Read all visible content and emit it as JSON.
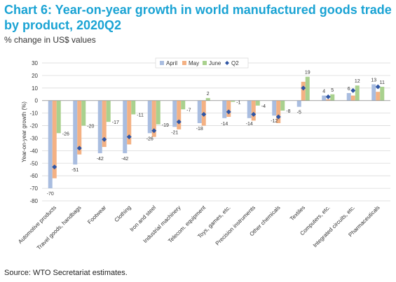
{
  "header": {
    "title": "Chart 6: Year-on-year growth in world manufactured goods trade by product, 2020Q2",
    "subtitle": "% change in US$ values"
  },
  "footer": {
    "source": "Source:   WTO Secretariat estimates."
  },
  "colors": {
    "title": "#1aa3d4",
    "april": "#a9bde0",
    "may": "#f4b183",
    "june": "#a9d18e",
    "q2": "#2f55a4"
  },
  "chart_data": {
    "type": "bar",
    "ylabel": "Year-on-year growth (%)",
    "ylim": [
      -80,
      30
    ],
    "yticks": [
      30,
      20,
      10,
      0,
      -10,
      -20,
      -30,
      -40,
      -50,
      -60,
      -70,
      -80
    ],
    "grid": true,
    "legend_position": "top-center",
    "categories": [
      "Automotive products",
      "Travel goods, handbags",
      "Footwear",
      "Clothing",
      "Iron and steel",
      "Industrial machinery",
      "Telecom. equipment",
      "Toys, games, etc.",
      "Precision instruments",
      "Other chemicals",
      "Textiles",
      "Computers, etc.",
      "Integrated circuits, etc.",
      "Pharmaceuticals"
    ],
    "series": [
      {
        "name": "April",
        "type": "bar",
        "values": [
          -70,
          -51,
          -42,
          -42,
          -26,
          -21,
          -18,
          -14,
          -14,
          -12,
          -5,
          4,
          6,
          13
        ]
      },
      {
        "name": "May",
        "type": "bar",
        "values": [
          -62,
          -43,
          -37,
          -35,
          -29,
          -23,
          -20,
          -13,
          -16,
          -18,
          15,
          1,
          4,
          7
        ]
      },
      {
        "name": "June",
        "type": "bar",
        "values": [
          -26,
          -20,
          -17,
          -11,
          -19,
          -7,
          2,
          -1,
          -4,
          -8,
          19,
          5,
          12,
          11
        ]
      },
      {
        "name": "Q2",
        "type": "marker",
        "values": [
          -53,
          -38,
          -31,
          -29,
          -24,
          -17,
          -11,
          -9,
          -11,
          -13,
          10,
          3,
          8,
          11
        ]
      }
    ],
    "data_labels": [
      {
        "text": "-70",
        "category": 0,
        "value": -70,
        "anchor": "below",
        "series": "April"
      },
      {
        "text": "-26",
        "category": 0,
        "value": -26,
        "anchor": "right",
        "series": "June"
      },
      {
        "text": "-51",
        "category": 1,
        "value": -51,
        "anchor": "below",
        "series": "April"
      },
      {
        "text": "-20",
        "category": 1,
        "value": -20,
        "anchor": "right",
        "series": "June"
      },
      {
        "text": "-42",
        "category": 2,
        "value": -42,
        "anchor": "below",
        "series": "April"
      },
      {
        "text": "-17",
        "category": 2,
        "value": -17,
        "anchor": "right",
        "series": "June"
      },
      {
        "text": "-42",
        "category": 3,
        "value": -42,
        "anchor": "below",
        "series": "April"
      },
      {
        "text": "-11",
        "category": 3,
        "value": -11,
        "anchor": "right",
        "series": "June"
      },
      {
        "text": "-26",
        "category": 4,
        "value": -26,
        "anchor": "below",
        "series": "April"
      },
      {
        "text": "-19",
        "category": 4,
        "value": -19,
        "anchor": "right",
        "series": "June"
      },
      {
        "text": "-21",
        "category": 5,
        "value": -21,
        "anchor": "below",
        "series": "April"
      },
      {
        "text": "-7",
        "category": 5,
        "value": -7,
        "anchor": "right",
        "series": "June"
      },
      {
        "text": "-18",
        "category": 6,
        "value": -18,
        "anchor": "below",
        "series": "April"
      },
      {
        "text": "2",
        "category": 6,
        "value": 2,
        "anchor": "above",
        "series": "June"
      },
      {
        "text": "-14",
        "category": 7,
        "value": -14,
        "anchor": "below",
        "series": "April"
      },
      {
        "text": "-1",
        "category": 7,
        "value": -1,
        "anchor": "right",
        "series": "June"
      },
      {
        "text": "-14",
        "category": 8,
        "value": -14,
        "anchor": "below",
        "series": "April"
      },
      {
        "text": "-4",
        "category": 8,
        "value": -4,
        "anchor": "right",
        "series": "June"
      },
      {
        "text": "-12",
        "category": 9,
        "value": -12,
        "anchor": "below",
        "series": "April"
      },
      {
        "text": "-8",
        "category": 9,
        "value": -8,
        "anchor": "right",
        "series": "June"
      },
      {
        "text": "-5",
        "category": 10,
        "value": -5,
        "anchor": "below",
        "series": "April"
      },
      {
        "text": "19",
        "category": 10,
        "value": 19,
        "anchor": "above",
        "series": "June"
      },
      {
        "text": "4",
        "category": 11,
        "value": 4,
        "anchor": "above",
        "series": "April"
      },
      {
        "text": "5",
        "category": 11,
        "value": 5,
        "anchor": "above",
        "series": "June"
      },
      {
        "text": "6",
        "category": 12,
        "value": 6,
        "anchor": "above",
        "series": "April"
      },
      {
        "text": "12",
        "category": 12,
        "value": 12,
        "anchor": "above",
        "series": "June"
      },
      {
        "text": "13",
        "category": 13,
        "value": 13,
        "anchor": "above",
        "series": "April"
      },
      {
        "text": "11",
        "category": 13,
        "value": 11,
        "anchor": "above",
        "series": "June"
      }
    ]
  }
}
